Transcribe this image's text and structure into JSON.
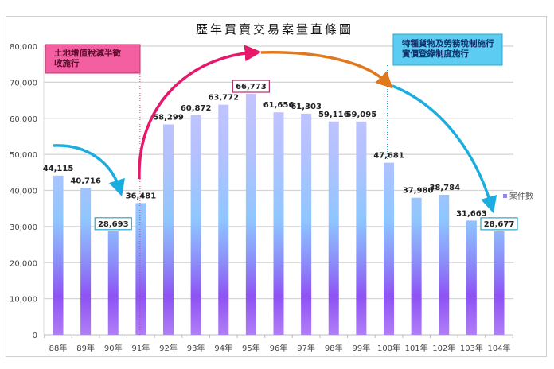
{
  "chart_data": {
    "type": "bar",
    "title": "歷年買賣交易案量直條圖",
    "xlabel": "",
    "ylabel": "",
    "categories": [
      "88年",
      "89年",
      "90年",
      "91年",
      "92年",
      "93年",
      "94年",
      "95年",
      "96年",
      "97年",
      "98年",
      "99年",
      "100年",
      "101年",
      "102年",
      "103年",
      "104年"
    ],
    "series": [
      {
        "name": "案件數",
        "values": [
          44115,
          40716,
          28693,
          36481,
          58299,
          60872,
          63772,
          66773,
          61656,
          61303,
          59116,
          59095,
          47681,
          37980,
          38784,
          31663,
          28677
        ],
        "labels": [
          "44,115",
          "40,716",
          "28,693",
          "36,481",
          "58,299",
          "60,872",
          "63,772",
          "66,773",
          "61,656",
          "61,303",
          "59,116",
          "59,095",
          "47,681",
          "37,980",
          "38,784",
          "31,663",
          "28,677"
        ]
      }
    ],
    "ylim": [
      0,
      80000
    ],
    "yticks": [
      0,
      10000,
      20000,
      30000,
      40000,
      50000,
      60000,
      70000,
      80000
    ],
    "ytick_labels": [
      "0",
      "10,000",
      "20,000",
      "30,000",
      "40,000",
      "50,000",
      "60,000",
      "70,000",
      "80,000"
    ],
    "grid": true,
    "legend": {
      "position": "right",
      "entries": [
        "案件數"
      ]
    },
    "highlighted_labels": [
      {
        "category": "90年",
        "box_color": "#2aa7c9"
      },
      {
        "category": "95年",
        "box_color": "#b0306a"
      },
      {
        "category": "104年",
        "box_color": "#2aa7c9"
      }
    ],
    "annotations": [
      {
        "text_lines": [
          "土地增值稅減半徵",
          "收施行"
        ],
        "at_category": "91年",
        "box_fill": "#f45fa1",
        "box_border": "#c0306a",
        "text_color": "#5a0a2a",
        "marker_color": "#e0337a"
      },
      {
        "text_lines": [
          "特種貨物及勞務稅制施行",
          "實價登錄制度施行"
        ],
        "at_category": "100年",
        "box_fill": "#5cccf2",
        "box_border": "#2aa7c9",
        "text_color": "#12306a",
        "marker_color": "#2aa7c9"
      }
    ],
    "trend_arrows": [
      {
        "from": "88年",
        "to": "90年",
        "color": "#1aaee0",
        "meaning": "decline"
      },
      {
        "from": "91年",
        "to": "95年",
        "color": "#e6186a",
        "meaning": "rise"
      },
      {
        "from": "95年",
        "to": "100年",
        "color": "#e0781e",
        "meaning": "peak plateau"
      },
      {
        "from": "100年",
        "to": "104年",
        "color": "#1aaee0",
        "meaning": "decline"
      }
    ],
    "colors": {
      "bar_top": "#c6c3ff",
      "bar_mid": "#8cc3ff",
      "bar_low": "#8e55f5",
      "bar_bottom": "#b07cf5",
      "grid": "#d4d4d4",
      "legend_swatch": "#8f86ee"
    }
  }
}
